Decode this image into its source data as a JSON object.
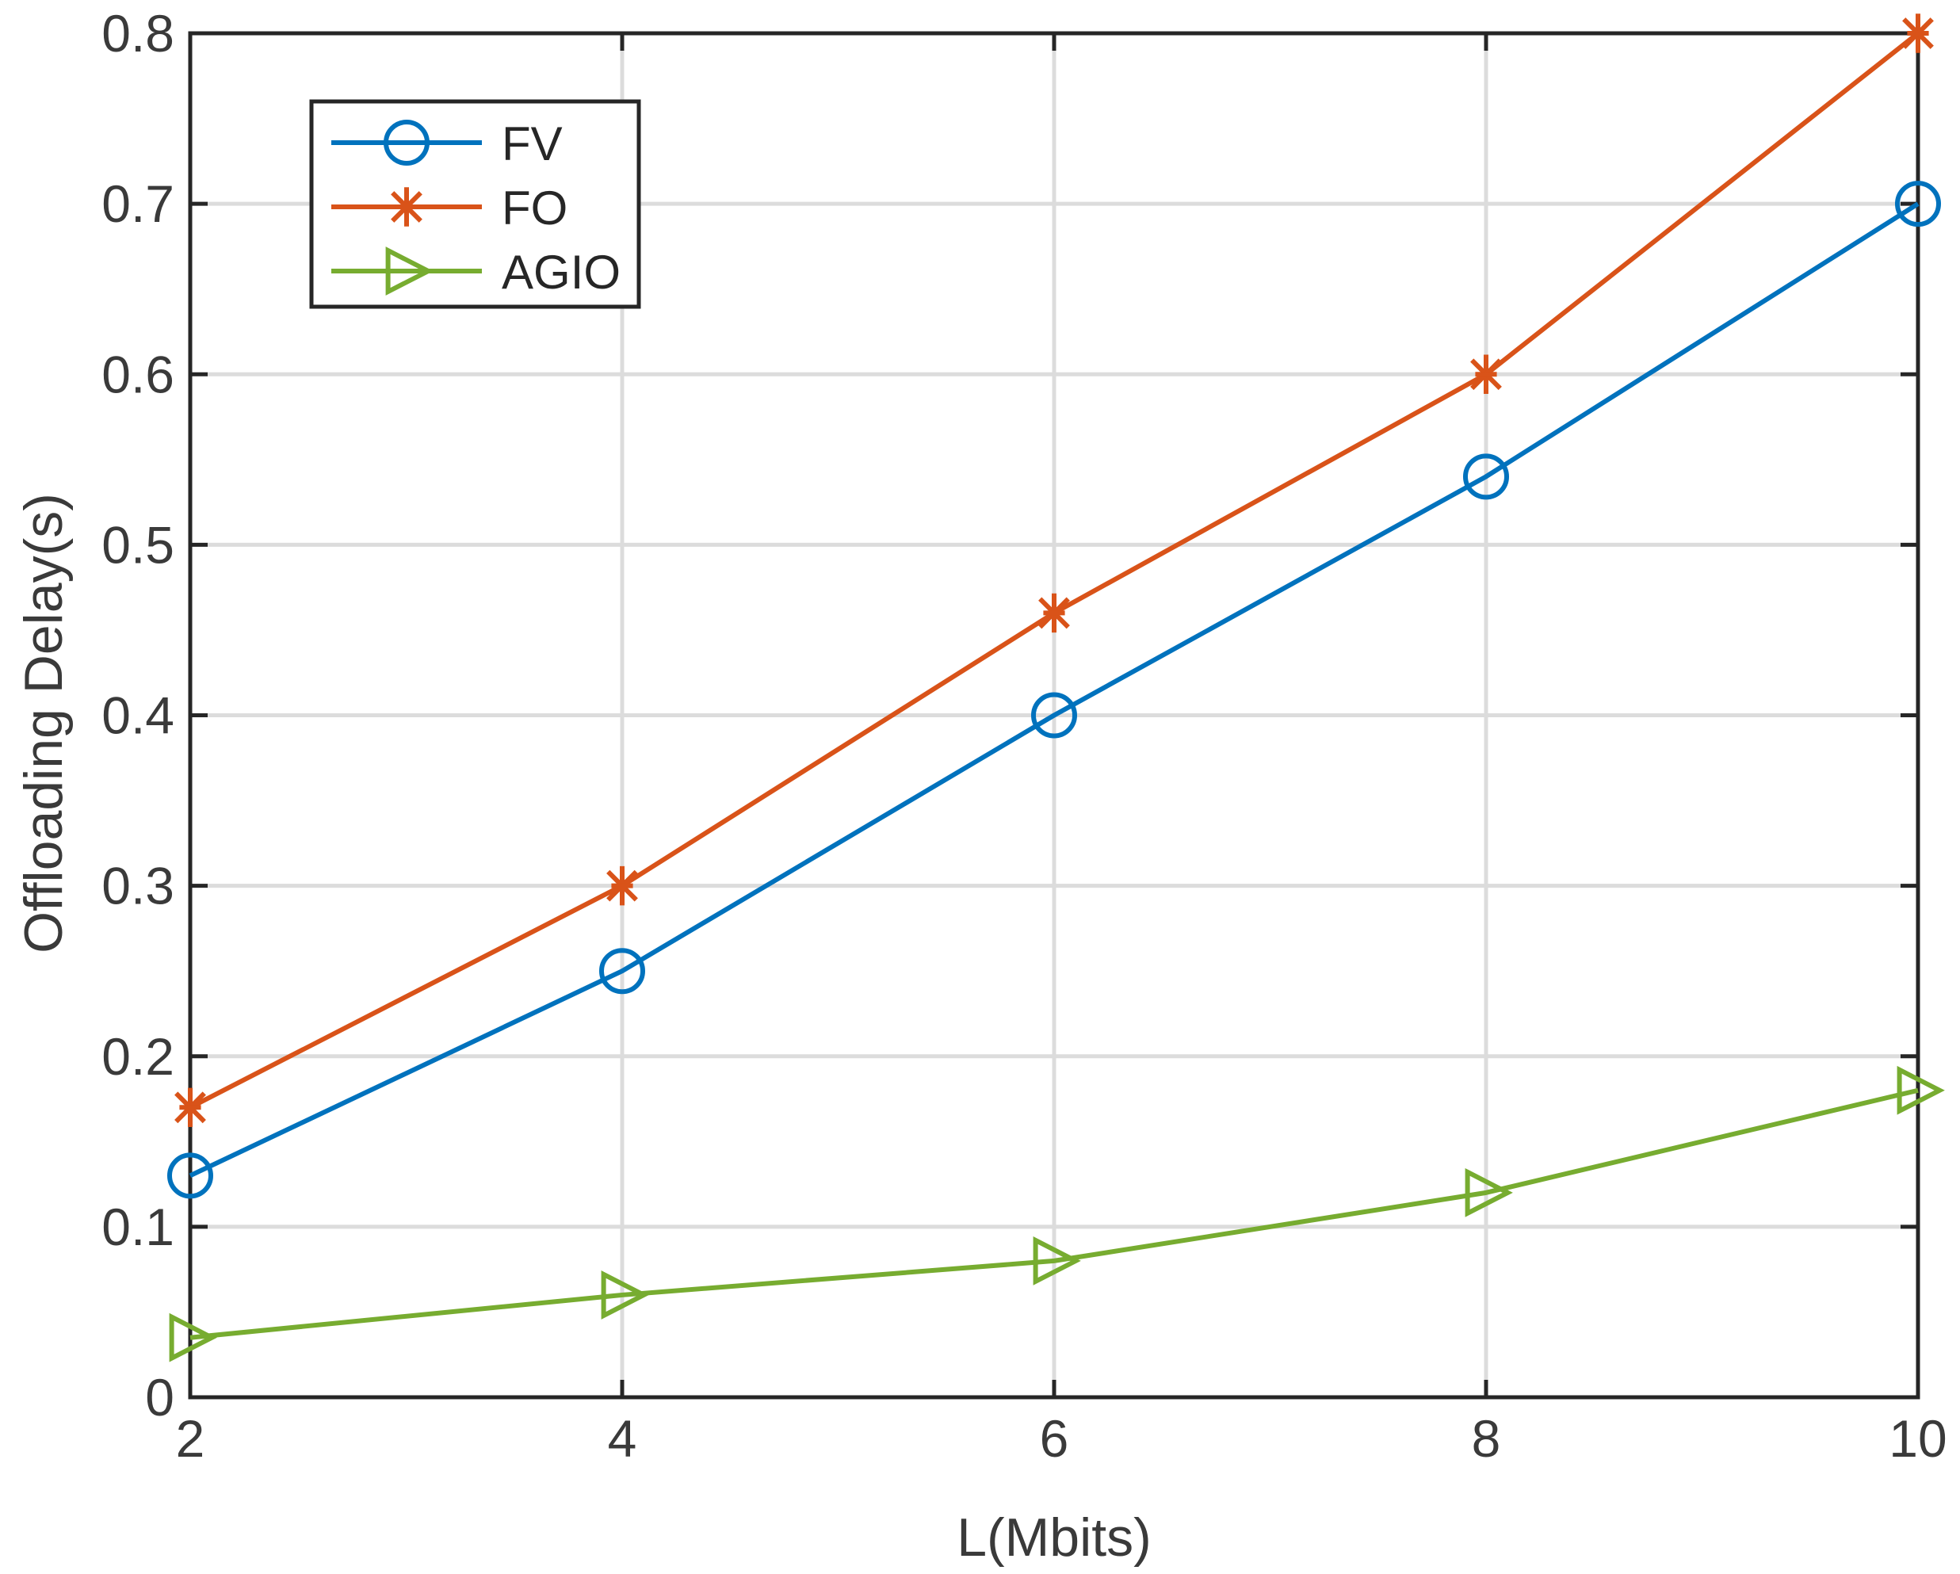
{
  "chart_data": {
    "type": "line",
    "title": "",
    "xlabel": "L(Mbits)",
    "ylabel": "Offloading Delay(s)",
    "xlim": [
      2,
      10
    ],
    "ylim": [
      0,
      0.8
    ],
    "xticks": [
      2,
      4,
      6,
      8,
      10
    ],
    "xtick_labels": [
      "2",
      "4",
      "6",
      "8",
      "10"
    ],
    "yticks": [
      0,
      0.1,
      0.2,
      0.3,
      0.4,
      0.5,
      0.6,
      0.7,
      0.8
    ],
    "ytick_labels": [
      "0",
      "0.1",
      "0.2",
      "0.3",
      "0.4",
      "0.5",
      "0.6",
      "0.7",
      "0.8"
    ],
    "grid": true,
    "legend_position": "top-left",
    "x": [
      2,
      4,
      6,
      8,
      10
    ],
    "series": [
      {
        "name": "FV",
        "values": [
          0.13,
          0.25,
          0.4,
          0.54,
          0.7
        ],
        "color": "#0072BD",
        "marker": "circle"
      },
      {
        "name": "FO",
        "values": [
          0.17,
          0.3,
          0.46,
          0.6,
          0.8
        ],
        "color": "#D95319",
        "marker": "asterisk"
      },
      {
        "name": "AGIO",
        "values": [
          0.035,
          0.06,
          0.08,
          0.12,
          0.18
        ],
        "color": "#77AC30",
        "marker": "triangle-right"
      }
    ]
  }
}
